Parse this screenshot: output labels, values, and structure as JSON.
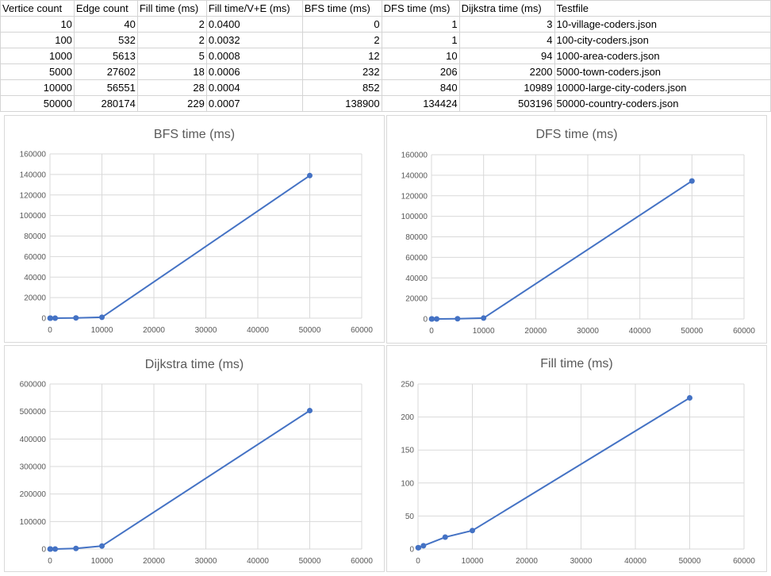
{
  "table": {
    "headers": [
      "Vertice count",
      "Edge count",
      "Fill time (ms)",
      "Fill time/V+E (ms)",
      "BFS time (ms)",
      "DFS time (ms)",
      "Dijkstra time (ms)",
      "Testfile"
    ],
    "rows": [
      [
        "10",
        "40",
        "2",
        "0.0400",
        "0",
        "1",
        "3",
        "10-village-coders.json"
      ],
      [
        "100",
        "532",
        "2",
        "0.0032",
        "2",
        "1",
        "4",
        "100-city-coders.json"
      ],
      [
        "1000",
        "5613",
        "5",
        "0.0008",
        "12",
        "10",
        "94",
        "1000-area-coders.json"
      ],
      [
        "5000",
        "27602",
        "18",
        "0.0006",
        "232",
        "206",
        "2200",
        "5000-town-coders.json"
      ],
      [
        "10000",
        "56551",
        "28",
        "0.0004",
        "852",
        "840",
        "10989",
        "10000-large-city-coders.json"
      ],
      [
        "50000",
        "280174",
        "229",
        "0.0007",
        "138900",
        "134424",
        "503196",
        "50000-country-coders.json"
      ]
    ]
  },
  "chart_data": [
    {
      "id": "bfs",
      "type": "scatter",
      "title": "BFS time (ms)",
      "x": [
        10,
        100,
        1000,
        5000,
        10000,
        50000
      ],
      "y": [
        0,
        2,
        12,
        232,
        852,
        138900
      ],
      "xlim": [
        0,
        60000
      ],
      "ylim": [
        0,
        160000
      ],
      "xticks": [
        0,
        10000,
        20000,
        30000,
        40000,
        50000,
        60000
      ],
      "yticks": [
        0,
        20000,
        40000,
        60000,
        80000,
        100000,
        120000,
        140000,
        160000
      ],
      "grid": true,
      "color": "#4472c4"
    },
    {
      "id": "dfs",
      "type": "scatter",
      "title": "DFS time (ms)",
      "x": [
        10,
        100,
        1000,
        5000,
        10000,
        50000
      ],
      "y": [
        1,
        1,
        10,
        206,
        840,
        134424
      ],
      "xlim": [
        0,
        60000
      ],
      "ylim": [
        0,
        160000
      ],
      "xticks": [
        0,
        10000,
        20000,
        30000,
        40000,
        50000,
        60000
      ],
      "yticks": [
        0,
        20000,
        40000,
        60000,
        80000,
        100000,
        120000,
        140000,
        160000
      ],
      "grid": true,
      "color": "#4472c4"
    },
    {
      "id": "dijkstra",
      "type": "scatter",
      "title": "Dijkstra time (ms)",
      "x": [
        10,
        100,
        1000,
        5000,
        10000,
        50000
      ],
      "y": [
        3,
        4,
        94,
        2200,
        10989,
        503196
      ],
      "xlim": [
        0,
        60000
      ],
      "ylim": [
        0,
        600000
      ],
      "xticks": [
        0,
        10000,
        20000,
        30000,
        40000,
        50000,
        60000
      ],
      "yticks": [
        0,
        100000,
        200000,
        300000,
        400000,
        500000,
        600000
      ],
      "grid": true,
      "color": "#4472c4"
    },
    {
      "id": "fill",
      "type": "scatter",
      "title": "Fill time (ms)",
      "x": [
        10,
        100,
        1000,
        5000,
        10000,
        50000
      ],
      "y": [
        2,
        2,
        5,
        18,
        28,
        229
      ],
      "xlim": [
        0,
        60000
      ],
      "ylim": [
        0,
        250
      ],
      "xticks": [
        0,
        10000,
        20000,
        30000,
        40000,
        50000,
        60000
      ],
      "yticks": [
        0,
        50,
        100,
        150,
        200,
        250
      ],
      "grid": true,
      "color": "#4472c4"
    }
  ]
}
